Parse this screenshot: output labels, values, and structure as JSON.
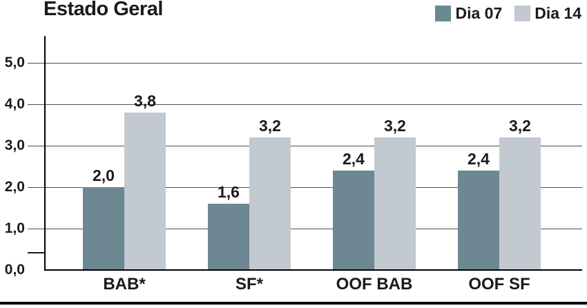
{
  "title": "Estado Geral",
  "legend": {
    "items": [
      {
        "label": "Dia 07",
        "color": "#6D8793"
      },
      {
        "label": "Dia 14",
        "color": "#C3C9D0"
      }
    ]
  },
  "chart_data": {
    "type": "bar",
    "title": "Estado Geral",
    "categories": [
      "BAB*",
      "SF*",
      "OOF BAB",
      "OOF SF"
    ],
    "series": [
      {
        "name": "Dia 07",
        "color": "#6D8793",
        "values": [
          2.0,
          1.6,
          2.4,
          2.4
        ],
        "value_labels": [
          "2,0",
          "1,6",
          "2,4",
          "2,4"
        ]
      },
      {
        "name": "Dia 14",
        "color": "#C3C9D0",
        "values": [
          3.8,
          3.2,
          3.2,
          3.2
        ],
        "value_labels": [
          "3,8",
          "3,2",
          "3,2",
          "3,2"
        ]
      }
    ],
    "ylim": [
      0,
      5
    ],
    "ytick_interval": 1.0,
    "yticks": [
      {
        "value": 0,
        "label": "0,0"
      },
      {
        "value": 1,
        "label": "1,0"
      },
      {
        "value": 2,
        "label": "2,0"
      },
      {
        "value": 3,
        "label": "3,0"
      },
      {
        "value": 4,
        "label": "4,0"
      },
      {
        "value": 5,
        "label": "5,0"
      }
    ],
    "grid": true,
    "legend_position": "top-right",
    "decimal_separator": ","
  },
  "colors": {
    "background": "#FFFFFF",
    "axis": "#000000",
    "gridline": "#4D4D4D",
    "text": "#1A1A1A",
    "series_dia07": "#6D8793",
    "series_dia14": "#C3C9D0"
  }
}
